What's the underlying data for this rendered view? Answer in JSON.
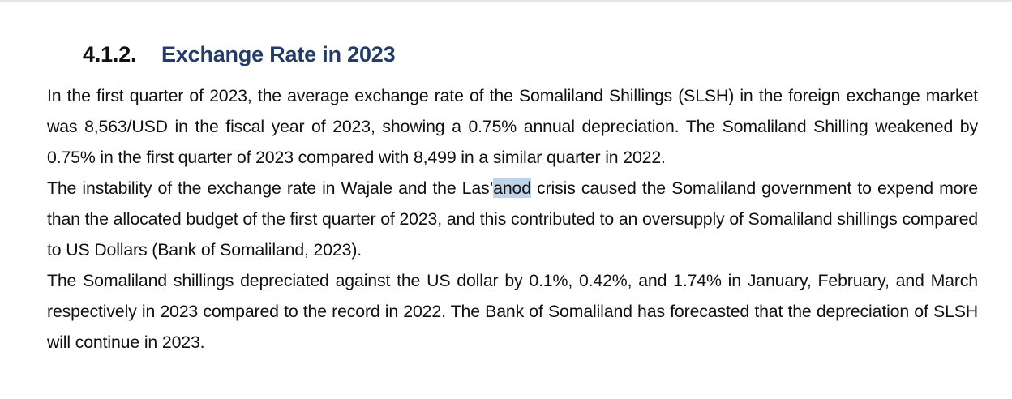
{
  "section": {
    "number": "4.1.2.",
    "title": "Exchange Rate in 2023"
  },
  "paragraphs": {
    "p1": "In the first quarter of 2023, the average exchange rate of the Somaliland Shillings (SLSH) in the foreign exchange market was 8,563/USD in the fiscal year of 2023, showing a 0.75% annual depreciation. The Somaliland Shilling weakened by 0.75% in the first quarter of 2023 compared with 8,499 in a similar quarter in 2022.",
    "p2_before": "The instability of the exchange rate in Wajale and the Las’",
    "p2_highlight": "anod",
    "p2_after": " crisis caused the Somaliland government to expend more than the allocated budget of the first quarter of 2023, and this contributed to an oversupply of Somaliland shillings compared to US Dollars (Bank of Somaliland, 2023).",
    "p3": "The Somaliland shillings depreciated against the US dollar by 0.1%, 0.42%, and 1.74% in January, February, and March respectively in 2023 compared to the record in 2022. The Bank of Somaliland has forecasted that the depreciation of SLSH will continue in 2023."
  },
  "colors": {
    "heading_title": "#253c66",
    "text": "#111111",
    "selection_highlight": "#bfd3ea"
  }
}
